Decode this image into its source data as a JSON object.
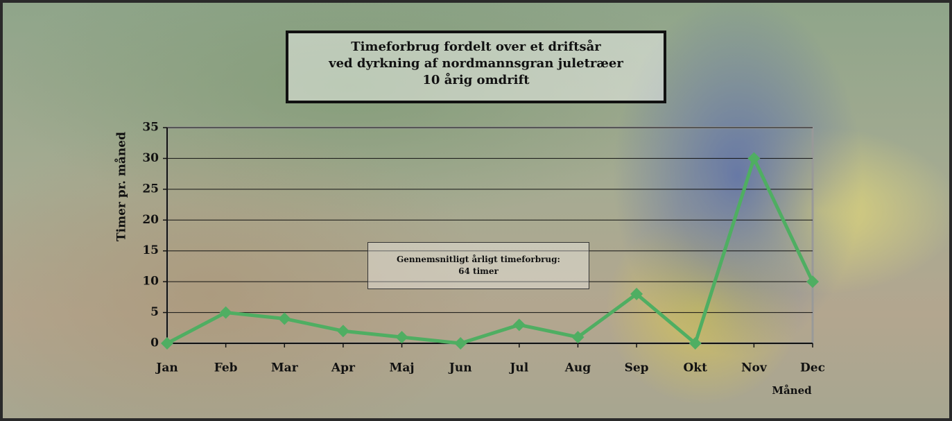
{
  "chart_data": {
    "type": "line",
    "title": [
      "Timeforbrug fordelt over et driftsår",
      "ved dyrkning af nordmannsgran juletræer",
      "10 årig omdrift"
    ],
    "annotation": [
      "Gennemsnitligt årligt timeforbrug:",
      "64 timer"
    ],
    "x_label": "Måned",
    "y_label": "Timer pr. måned",
    "categories": [
      "Jan",
      "Feb",
      "Mar",
      "Apr",
      "Maj",
      "Jun",
      "Jul",
      "Aug",
      "Sep",
      "Okt",
      "Nov",
      "Dec"
    ],
    "values": [
      0,
      5,
      4,
      2,
      1,
      0,
      3,
      1,
      8,
      0,
      30,
      10
    ],
    "color": "#4fae62",
    "ylim": [
      0,
      35
    ],
    "yticks": [
      0,
      5,
      10,
      15,
      20,
      25,
      30,
      35
    ],
    "grid": true
  }
}
